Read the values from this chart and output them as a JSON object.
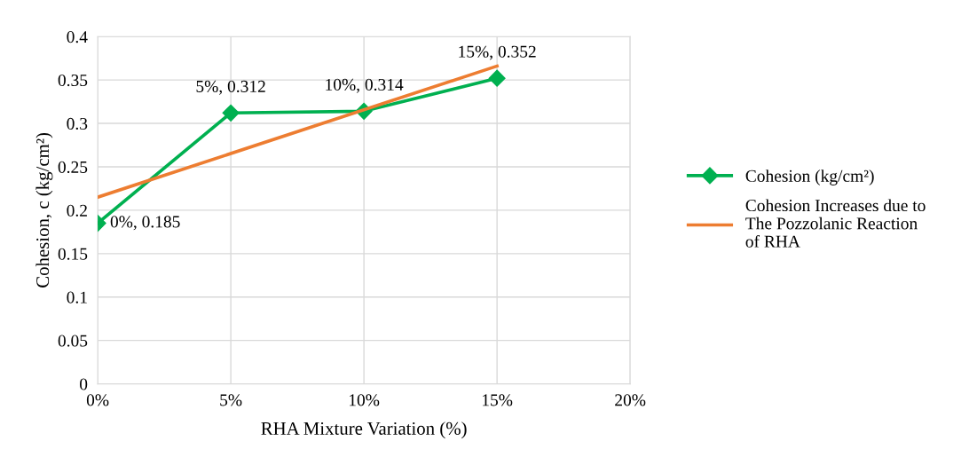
{
  "chart_data": {
    "type": "line",
    "xlabel": "RHA Mixture Variation (%)",
    "ylabel": "Cohesion, c (kg/cm²)",
    "series": [
      {
        "name": "Cohesion (kg/cm²)",
        "color": "#00b050",
        "marker": "diamond",
        "x": [
          0,
          5,
          10,
          15
        ],
        "values": [
          0.185,
          0.312,
          0.314,
          0.352
        ],
        "value_labels": [
          "0%, 0.185",
          "5%, 0.312",
          "10%, 0.314",
          "15%, 0.352"
        ]
      },
      {
        "name": "Cohesion Increases due to The Pozzolanic Reaction of RHA",
        "color": "#ed7d31",
        "marker": "none",
        "x": [
          0,
          15
        ],
        "values": [
          0.215,
          0.366
        ]
      }
    ],
    "xlim": [
      0,
      20
    ],
    "xticks": [
      {
        "value": 0,
        "label": "0%"
      },
      {
        "value": 5,
        "label": "5%"
      },
      {
        "value": 10,
        "label": "10%"
      },
      {
        "value": 15,
        "label": "15%"
      },
      {
        "value": 20,
        "label": "20%"
      }
    ],
    "ylim": [
      0,
      0.4
    ],
    "yticks": [
      0,
      0.05,
      0.1,
      0.15,
      0.2,
      0.25,
      0.3,
      0.35,
      0.4
    ],
    "grid": true,
    "legend": "right",
    "line_style": "solid"
  }
}
